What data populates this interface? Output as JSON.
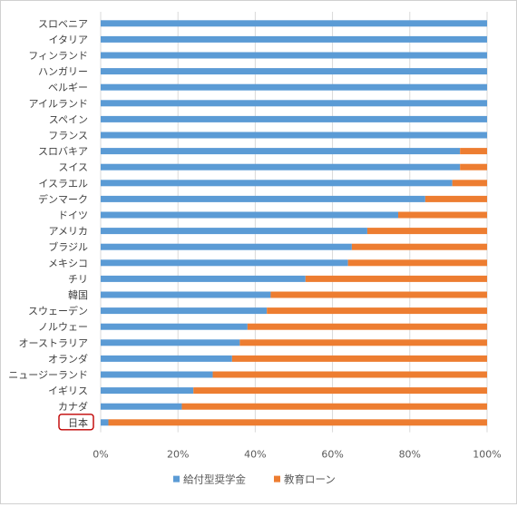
{
  "chart_data": {
    "type": "bar",
    "orientation": "horizontal",
    "stacked": "percent",
    "categories": [
      "スロベニア",
      "イタリア",
      "フィンランド",
      "ハンガリー",
      "ベルギー",
      "アイルランド",
      "スペイン",
      "フランス",
      "スロバキア",
      "スイス",
      "イスラエル",
      "デンマーク",
      "ドイツ",
      "アメリカ",
      "ブラジル",
      "メキシコ",
      "チリ",
      "韓国",
      "スウェーデン",
      "ノルウェー",
      "オーストラリア",
      "オランダ",
      "ニュージーランド",
      "イギリス",
      "カナダ",
      "日本"
    ],
    "series": [
      {
        "name": "給付型奨学金",
        "color": "#5b9bd5",
        "values": [
          100,
          100,
          100,
          100,
          100,
          100,
          100,
          100,
          93,
          93,
          91,
          84,
          77,
          69,
          65,
          64,
          53,
          44,
          43,
          38,
          36,
          34,
          29,
          24,
          21,
          2
        ]
      },
      {
        "name": "教育ローン",
        "color": "#ed7d31",
        "values": [
          0,
          0,
          0,
          0,
          0,
          0,
          0,
          0,
          7,
          7,
          9,
          16,
          23,
          31,
          35,
          36,
          47,
          56,
          57,
          62,
          64,
          66,
          71,
          76,
          79,
          98
        ]
      }
    ],
    "xticks": [
      "0%",
      "20%",
      "40%",
      "60%",
      "80%",
      "100%"
    ],
    "xlim": [
      0,
      100
    ],
    "grid": true,
    "legend": "bottom",
    "highlight": {
      "category": "日本",
      "color": "#c00000"
    }
  }
}
